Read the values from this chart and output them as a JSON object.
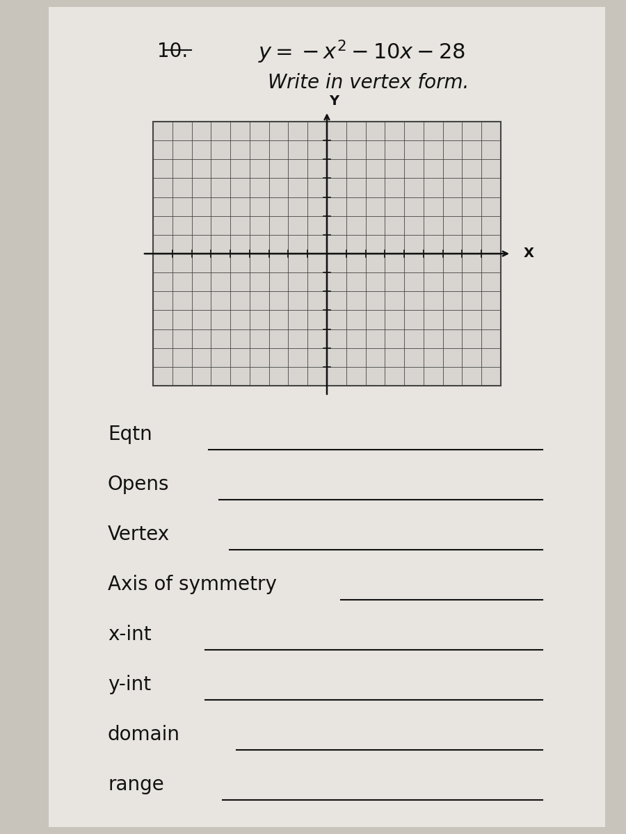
{
  "problem_number": "10.",
  "equation_display": "$y = -x^2 - 10x - 28$",
  "instruction": "Write in vertex form.",
  "fields": [
    "Eqtn",
    "Opens",
    "Vertex",
    "Axis of symmetry",
    "x-int",
    "y-int",
    "domain",
    "range"
  ],
  "bg_color": "#c8c4bc",
  "paper_color": "#e8e5e0",
  "grid_color": "#444444",
  "axis_color": "#111111",
  "text_color": "#111111",
  "line_color": "#111111",
  "grid_bg": "#d8d5d0",
  "x_min": -9,
  "x_max": 9,
  "y_min": -7,
  "y_max": 7
}
